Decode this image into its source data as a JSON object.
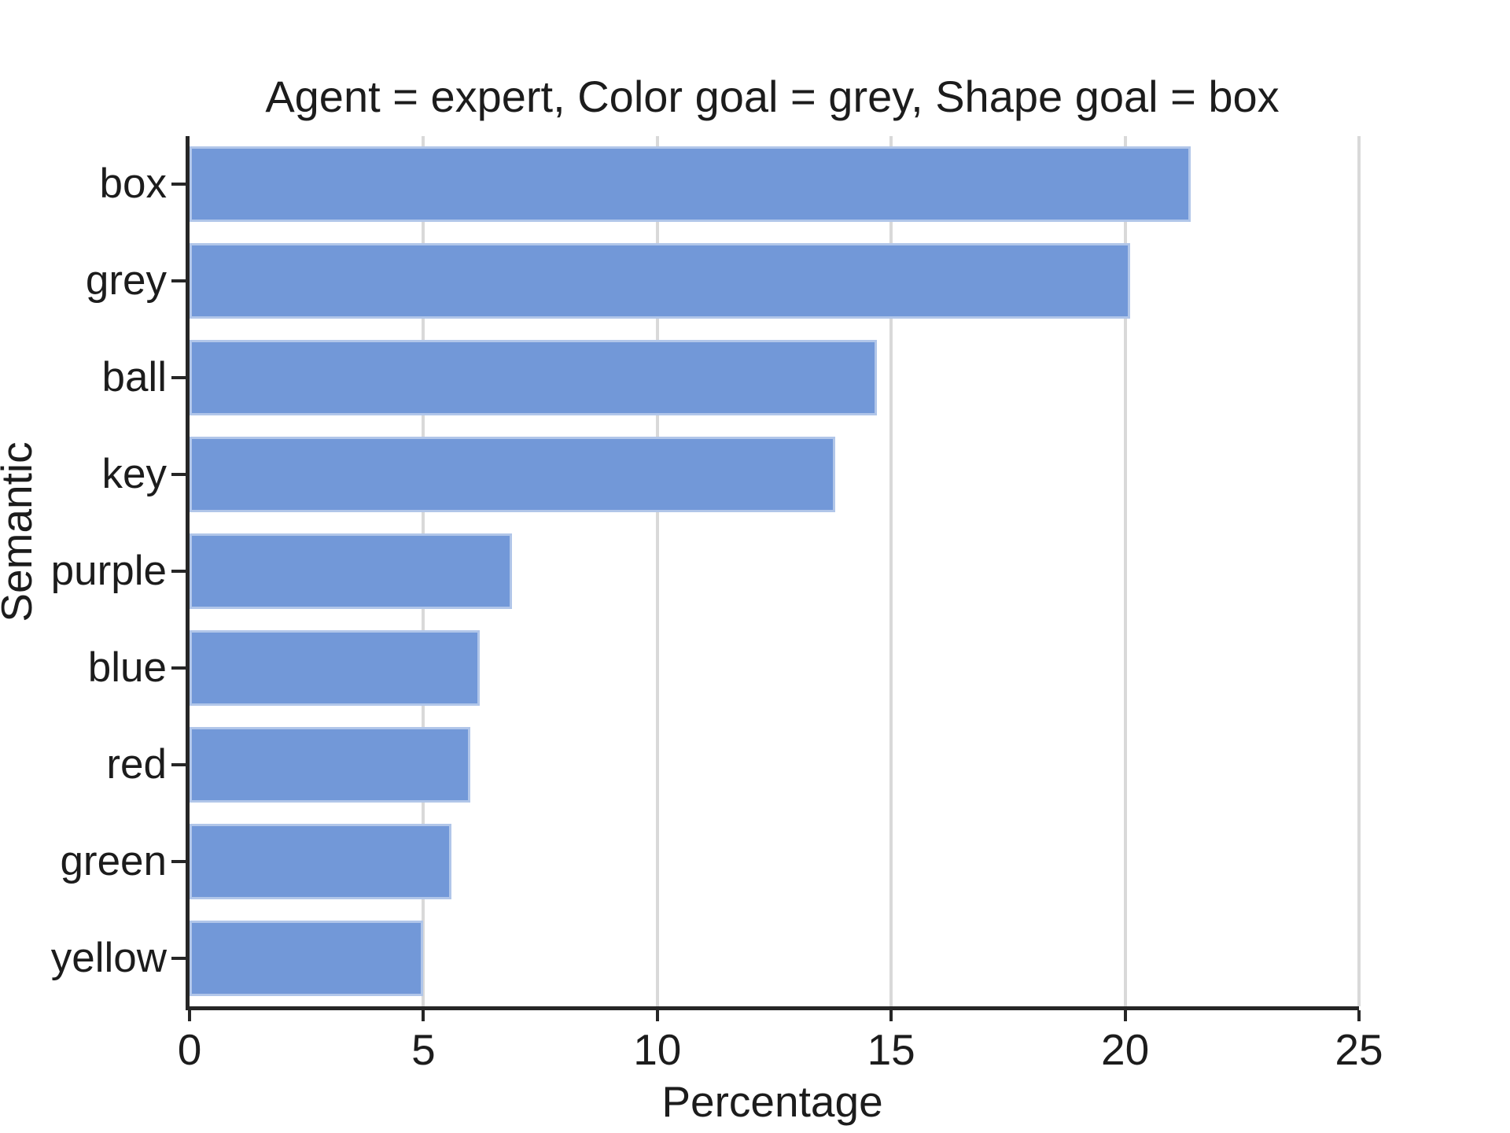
{
  "chart_data": {
    "type": "bar",
    "orientation": "horizontal",
    "title": "Agent = expert, Color goal = grey, Shape goal = box",
    "xlabel": "Percentage",
    "ylabel": "Semantic",
    "categories": [
      "box",
      "grey",
      "ball",
      "key",
      "purple",
      "blue",
      "red",
      "green",
      "yellow"
    ],
    "values": [
      21.4,
      20.1,
      14.7,
      13.8,
      6.9,
      6.2,
      6.0,
      5.6,
      5.0
    ],
    "xlim": [
      0,
      25
    ],
    "xticks": [
      0,
      5,
      10,
      15,
      20,
      25
    ],
    "xtick_labels": [
      "0",
      "5",
      "10",
      "15",
      "20",
      "25"
    ],
    "grid": "vertical",
    "legend": "none",
    "bar_color": "#7298d8",
    "grid_color": "#d9d9d9",
    "axis_color": "#262626",
    "text_color": "#1c1c1c",
    "background": "#ffffff"
  }
}
